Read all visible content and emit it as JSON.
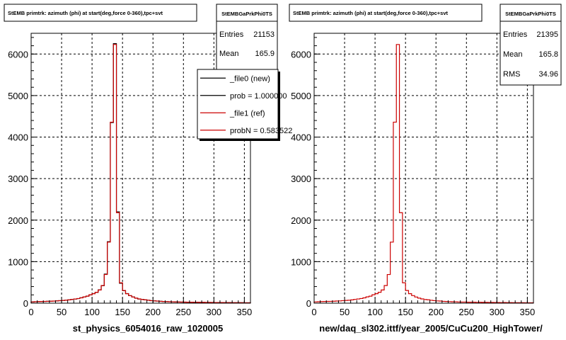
{
  "chart_data": [
    {
      "type": "line",
      "title": "StEMB primtrk: azimuth (phi) at start(deg,force 0-360),tpc+svt",
      "xlabel": "st_physics_6054016_raw_1020005",
      "ylabel": "",
      "xlim": [
        0,
        360
      ],
      "ylim": [
        0,
        6500
      ],
      "xticks": [
        0,
        50,
        100,
        150,
        200,
        250,
        300,
        350
      ],
      "yticks": [
        0,
        1000,
        2000,
        3000,
        4000,
        5000,
        6000
      ],
      "grid": true,
      "stats": {
        "name": "StEMBGaPrkPhi0TS",
        "rows": [
          {
            "label": "Entries",
            "value": "21153"
          },
          {
            "label": "Mean",
            "value": "165.9"
          }
        ]
      },
      "legend": {
        "placement": "top-right",
        "entries": [
          {
            "label": "_file0 (new)",
            "color": "#000000"
          },
          {
            "label": "prob = 1.000000",
            "color": "#000000"
          },
          {
            "label": "_file1 (ref)",
            "color": "#cc0000"
          },
          {
            "label": "probN = 0.583522",
            "color": "#cc0000"
          }
        ]
      },
      "bin_width": 5,
      "series": [
        {
          "name": "_file0 (new)",
          "color": "#000000",
          "values": [
            30,
            35,
            38,
            40,
            42,
            45,
            48,
            50,
            55,
            60,
            65,
            70,
            80,
            90,
            100,
            110,
            130,
            150,
            170,
            200,
            230,
            260,
            320,
            420,
            700,
            1480,
            4350,
            6250,
            2200,
            480,
            300,
            230,
            180,
            150,
            120,
            100,
            90,
            80,
            70,
            60,
            55,
            50,
            45,
            40,
            38,
            35,
            32,
            30,
            28,
            26,
            25,
            24,
            22,
            21,
            20,
            20,
            19,
            18,
            18,
            17,
            16,
            15,
            15,
            14,
            14,
            13,
            12,
            12,
            11,
            11,
            10,
            10
          ]
        },
        {
          "name": "_file1 (ref)",
          "color": "#cc0000",
          "values": [
            31,
            34,
            39,
            41,
            43,
            44,
            47,
            51,
            54,
            61,
            66,
            71,
            79,
            91,
            101,
            112,
            128,
            152,
            168,
            202,
            228,
            262,
            318,
            425,
            690,
            1470,
            4360,
            6230,
            2180,
            490,
            305,
            228,
            182,
            148,
            122,
            102,
            88,
            81,
            69,
            61,
            54,
            51,
            44,
            41,
            37,
            34,
            33,
            29,
            27,
            27,
            24,
            23,
            23,
            20,
            21,
            19,
            19,
            17,
            18,
            16,
            16,
            14,
            15,
            13,
            14,
            12,
            12,
            11,
            11,
            10,
            10,
            10
          ]
        }
      ]
    },
    {
      "type": "line",
      "title": "StEMB primtrk: azimuth (phi) at start(deg,force 0-360),tpc+svt",
      "xlabel": "new/daq_sl302.ittf/year_2005/CuCu200_HighTower/",
      "ylabel": "",
      "xlim": [
        0,
        360
      ],
      "ylim": [
        0,
        6500
      ],
      "xticks": [
        0,
        50,
        100,
        150,
        200,
        250,
        300,
        350
      ],
      "yticks": [
        0,
        1000,
        2000,
        3000,
        4000,
        5000,
        6000
      ],
      "grid": true,
      "stats": {
        "name": "StEMBGaPrkPhi0TS",
        "rows": [
          {
            "label": "Entries",
            "value": "21395"
          },
          {
            "label": "Mean",
            "value": "165.8"
          },
          {
            "label": "RMS",
            "value": "34.96"
          }
        ]
      },
      "bin_width": 5,
      "series": [
        {
          "name": "",
          "color": "#cc0000",
          "values": [
            31,
            34,
            39,
            41,
            43,
            44,
            47,
            51,
            54,
            61,
            66,
            71,
            79,
            91,
            101,
            112,
            128,
            152,
            168,
            202,
            228,
            262,
            318,
            425,
            690,
            1470,
            4360,
            6230,
            2180,
            490,
            305,
            228,
            182,
            148,
            122,
            102,
            88,
            81,
            69,
            61,
            54,
            51,
            44,
            41,
            37,
            34,
            33,
            29,
            27,
            27,
            24,
            23,
            23,
            20,
            21,
            19,
            19,
            17,
            18,
            16,
            16,
            14,
            15,
            13,
            14,
            12,
            12,
            11,
            11,
            10,
            10,
            10
          ]
        }
      ]
    }
  ]
}
